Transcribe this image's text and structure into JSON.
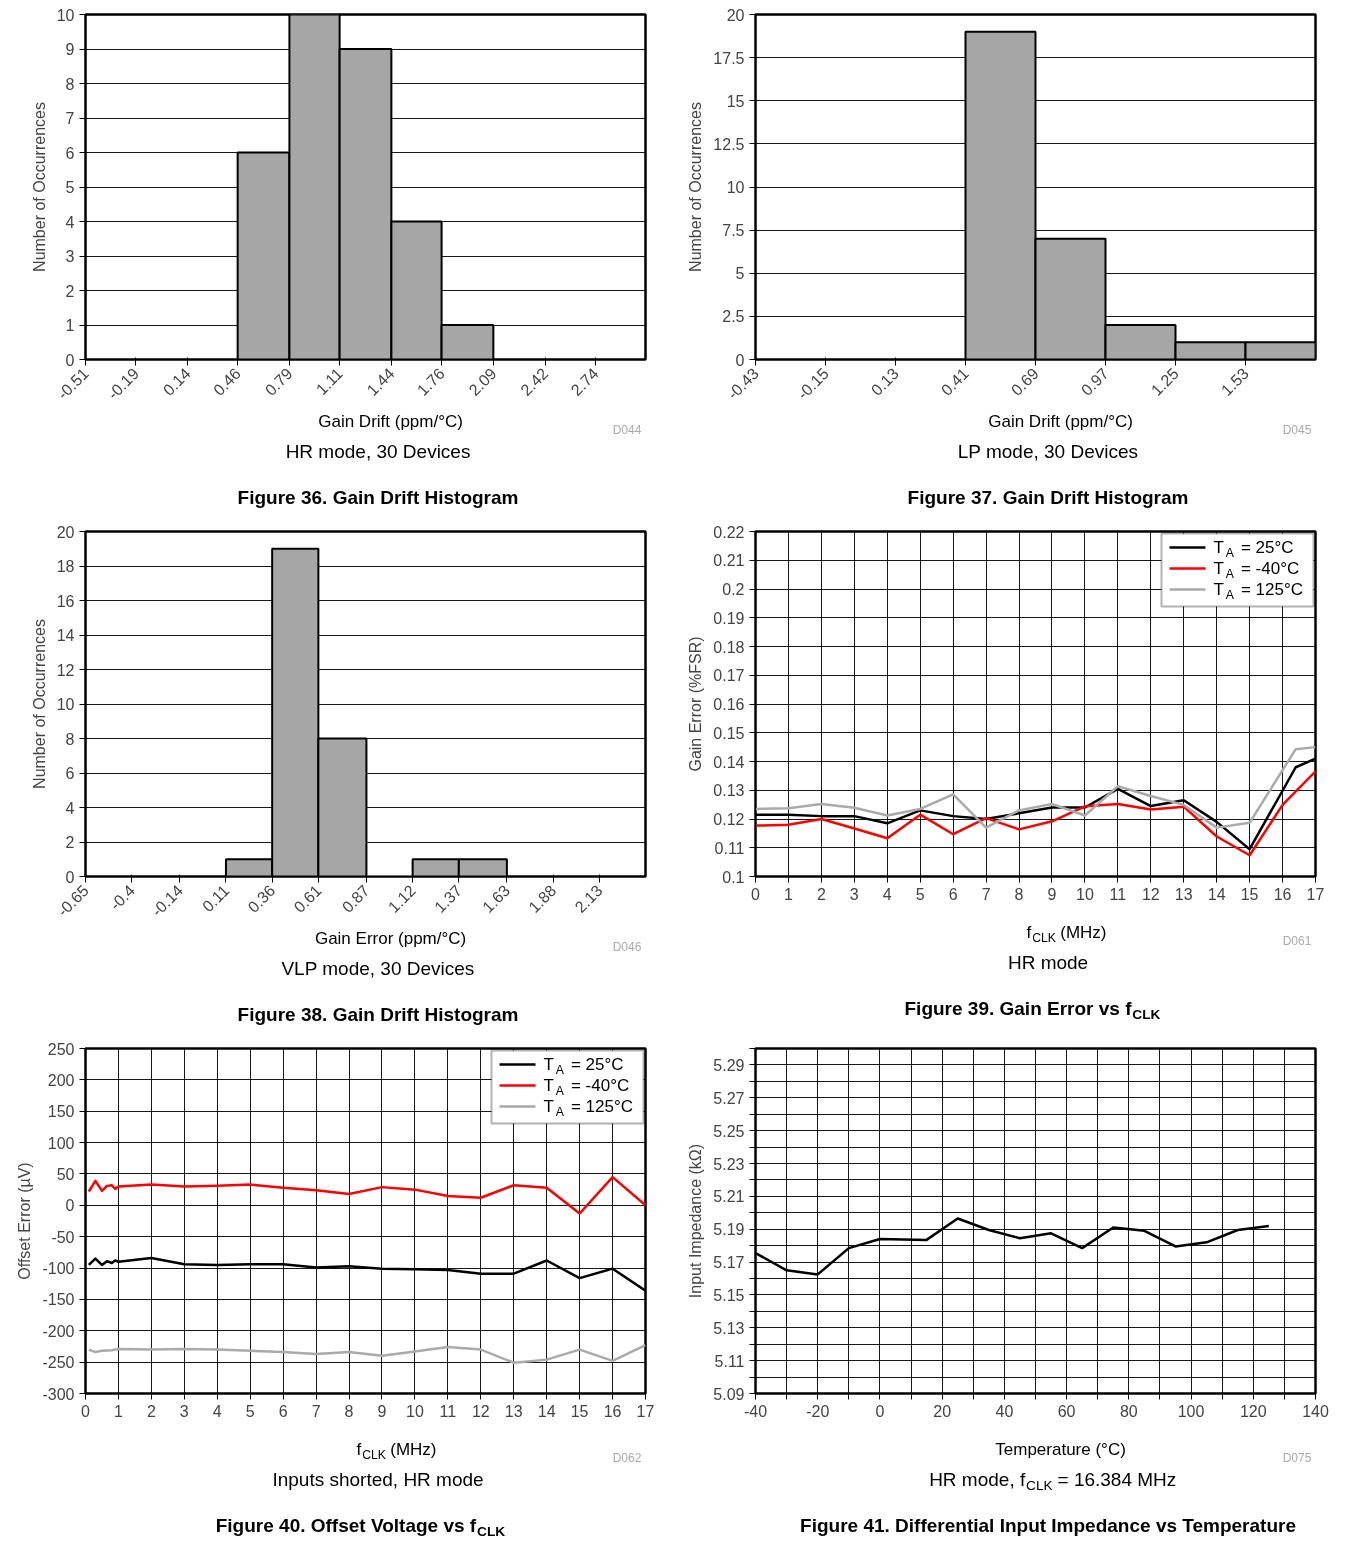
{
  "chart_data": [
    {
      "type": "histogram",
      "title": "Figure 36. Gain Drift Histogram",
      "subtitle": "HR mode, 30 Devices",
      "xlabel": "Gain Drift (ppm/°C)",
      "ylabel": "Number of Occurrences",
      "annotations": [
        "D044"
      ],
      "color": "#a6a6a6",
      "grid": "y",
      "bins": [
        0.46,
        0.79,
        1.11,
        1.44,
        1.76,
        2.09
      ],
      "values": [
        6,
        10,
        9,
        4,
        1
      ],
      "xlim": [
        -0.51,
        3.06
      ],
      "xticks": [
        -0.51,
        -0.19,
        0.14,
        0.46,
        0.79,
        1.11,
        1.44,
        1.76,
        2.09,
        2.42,
        2.74
      ],
      "ylim": [
        0,
        10
      ],
      "yticks": [
        0,
        1,
        2,
        3,
        4,
        5,
        6,
        7,
        8,
        9,
        10
      ]
    },
    {
      "type": "histogram",
      "title": "Figure 37. Gain Drift Histogram",
      "subtitle": "LP mode, 30 Devices",
      "xlabel": "Gain Drift (ppm/°C)",
      "ylabel": "Number of Occurrences",
      "annotations": [
        "D045"
      ],
      "color": "#a6a6a6",
      "grid": "y",
      "bins": [
        0.41,
        0.69,
        0.97,
        1.25,
        1.53,
        1.81
      ],
      "values": [
        19,
        7,
        2,
        1,
        1
      ],
      "xlim": [
        -0.43,
        1.81
      ],
      "xticks": [
        -0.43,
        -0.15,
        0.13,
        0.41,
        0.69,
        0.97,
        1.25,
        1.53
      ],
      "ylim": [
        0,
        20
      ],
      "yticks": [
        0,
        2.5,
        5,
        7.5,
        10,
        12.5,
        15,
        17.5,
        20
      ]
    },
    {
      "type": "histogram",
      "title": "Figure 38. Gain Drift Histogram",
      "subtitle": "VLP mode, 30 Devices",
      "xlabel": "Gain Error (ppm/°C)",
      "ylabel": "Number of Occurrences",
      "annotations": [
        "D046"
      ],
      "color": "#a6a6a6",
      "grid": "y",
      "bins": [
        0.11,
        0.36,
        0.61,
        0.87,
        1.12,
        1.37,
        1.63
      ],
      "values": [
        1,
        19,
        8,
        0,
        1,
        1
      ],
      "xlim": [
        -0.65,
        2.38
      ],
      "xticks": [
        -0.65,
        -0.4,
        -0.14,
        0.11,
        0.36,
        0.61,
        0.87,
        1.12,
        1.37,
        1.63,
        1.88,
        2.13
      ],
      "ylim": [
        0,
        20
      ],
      "yticks": [
        0,
        2,
        4,
        6,
        8,
        10,
        12,
        14,
        16,
        18,
        20
      ]
    },
    {
      "type": "line",
      "title": "Figure 39. Gain Error vs f$_{CLK}$",
      "subtitle": "HR mode",
      "xlabel": "f$_{CLK}$ (MHz)",
      "ylabel": "Gain Error (%FSR)",
      "annotations": [
        "D061"
      ],
      "grid": true,
      "legend": "top right",
      "series": [
        {
          "name": "T$_{A}$ = 25°C",
          "color": "#000000",
          "x": [
            0,
            1,
            2,
            3,
            4,
            5,
            6,
            7,
            8,
            9,
            10,
            11,
            12,
            13,
            14,
            15,
            16.4,
            17
          ],
          "values": [
            0.1215,
            0.1215,
            0.121,
            0.121,
            0.1185,
            0.123,
            0.121,
            0.12,
            0.122,
            0.124,
            0.124,
            0.1305,
            0.1245,
            0.1265,
            0.119,
            0.1095,
            0.138,
            0.141
          ]
        },
        {
          "name": "T$_{A}$ = -40°C",
          "color": "#ff0000",
          "x": [
            0,
            1,
            2,
            3,
            4,
            5,
            6,
            7,
            8,
            9,
            10,
            11,
            12,
            13,
            14,
            15,
            16,
            17
          ],
          "values": [
            0.1177,
            0.118,
            0.12,
            0.1167,
            0.1133,
            0.1215,
            0.1147,
            0.1203,
            0.1164,
            0.1192,
            0.1244,
            0.1252,
            0.1233,
            0.1243,
            0.1139,
            0.1074,
            0.1249,
            0.1366
          ]
        },
        {
          "name": "T$_{A}$ = 125°C",
          "color": "#aaaaaa",
          "x": [
            0,
            1,
            2,
            3,
            4,
            5,
            6,
            7,
            8,
            9,
            10,
            11,
            12,
            13,
            14,
            15,
            16.4,
            17
          ],
          "values": [
            0.1235,
            0.1237,
            0.1252,
            0.1239,
            0.1212,
            0.1235,
            0.1286,
            0.117,
            0.123,
            0.1252,
            0.1212,
            0.1314,
            0.128,
            0.1249,
            0.117,
            0.1187,
            0.1443,
            0.145
          ]
        }
      ],
      "xlim": [
        0,
        17
      ],
      "xticks": [
        0,
        1,
        2,
        3,
        4,
        5,
        6,
        7,
        8,
        9,
        10,
        11,
        12,
        13,
        14,
        15,
        16,
        17
      ],
      "ylim": [
        0.1,
        0.22
      ],
      "yticks": [
        0.1,
        0.11,
        0.12,
        0.13,
        0.14,
        0.15,
        0.16,
        0.17,
        0.18,
        0.19,
        0.2,
        0.21,
        0.22
      ]
    },
    {
      "type": "line",
      "title": "Figure 40. Offset Voltage vs f$_{CLK}$",
      "subtitle": "Inputs shorted, HR mode",
      "xlabel": "f$_{CLK}$ (MHz)",
      "ylabel": "Offset Error (µV)",
      "annotations": [
        "D062"
      ],
      "grid": true,
      "legend": "top right",
      "series": [
        {
          "name": "T$_{A}$ = 25°C",
          "color": "#000000",
          "x": [
            0.1,
            0.3,
            0.5,
            0.65,
            0.8,
            0.9,
            1,
            2,
            3,
            4,
            5,
            6,
            7,
            8,
            9,
            10,
            11,
            12,
            13,
            14,
            15,
            16,
            17
          ],
          "values": [
            -95,
            -85,
            -95,
            -89,
            -92,
            -88,
            -90,
            -84,
            -94,
            -95,
            -94,
            -94,
            -99,
            -97,
            -101,
            -102,
            -103,
            -109,
            -109,
            -88,
            -116,
            -101,
            -136
          ]
        },
        {
          "name": "T$_{A}$ = -40°C",
          "color": "#ff0000",
          "x": [
            0.1,
            0.3,
            0.5,
            0.65,
            0.8,
            0.9,
            1,
            2,
            3,
            4,
            5,
            6,
            7,
            8,
            9,
            10,
            11,
            12,
            13,
            14,
            15,
            16,
            17
          ],
          "values": [
            22,
            39,
            23,
            31,
            32,
            26,
            30,
            33,
            30,
            31,
            33,
            28,
            24,
            18,
            29,
            25,
            15,
            12,
            32,
            28,
            -13,
            45,
            0
          ]
        },
        {
          "name": "T$_{A}$ = 125°C",
          "color": "#aaaaaa",
          "x": [
            0.1,
            0.3,
            0.5,
            0.8,
            1,
            2,
            3,
            4,
            5,
            6,
            7,
            8,
            9,
            10,
            11,
            12,
            13,
            14,
            15,
            16,
            17
          ],
          "values": [
            -230,
            -234,
            -232,
            -231,
            -229,
            -230,
            -229,
            -230,
            -232,
            -234,
            -237,
            -234,
            -240,
            -233,
            -226,
            -230,
            -251,
            -246,
            -230,
            -248,
            -223
          ]
        }
      ],
      "xlim": [
        0,
        17
      ],
      "xticks": [
        0,
        1,
        2,
        3,
        4,
        5,
        6,
        7,
        8,
        9,
        10,
        11,
        12,
        13,
        14,
        15,
        16,
        17
      ],
      "ylim": [
        -300,
        250
      ],
      "yticks": [
        -300,
        -250,
        -200,
        -150,
        -100,
        -50,
        0,
        50,
        100,
        150,
        200,
        250
      ]
    },
    {
      "type": "line",
      "title": "Figure 41. Differential Input Impedance vs Temperature",
      "subtitle": "HR mode, f$_{CLK}$ = 16.384 MHz",
      "xlabel": "Temperature (°C)",
      "ylabel": "Input Impedance (kΩ)",
      "annotations": [
        "D075"
      ],
      "grid": true,
      "series": [
        {
          "color": "#000000",
          "x": [
            -40,
            -30,
            -20,
            -10,
            0,
            15,
            25,
            35,
            45,
            55,
            65,
            75,
            85,
            95,
            105,
            115,
            125
          ],
          "values": [
            5.1755,
            5.165,
            5.1625,
            5.1785,
            5.184,
            5.1835,
            5.1965,
            5.1895,
            5.1845,
            5.1875,
            5.1785,
            5.191,
            5.189,
            5.1795,
            5.182,
            5.1895,
            5.192
          ]
        }
      ],
      "xlim": [
        -40,
        140
      ],
      "xticks": [
        -40,
        {
          "value": -30,
          "label": null
        },
        -20,
        {
          "value": -10,
          "label": null
        },
        0,
        {
          "value": 10,
          "label": null
        },
        20,
        {
          "value": 30,
          "label": null
        },
        40,
        {
          "value": 50,
          "label": null
        },
        60,
        {
          "value": 70,
          "label": null
        },
        80,
        {
          "value": 90,
          "label": null
        },
        100,
        {
          "value": 110,
          "label": null
        },
        120,
        {
          "value": 130,
          "label": null
        },
        140
      ],
      "ylim": [
        5.09,
        5.3
      ],
      "yticks": [
        5.09,
        {
          "value": 5.1,
          "label": null
        },
        5.11,
        {
          "value": 5.12,
          "label": null
        },
        5.13,
        {
          "value": 5.14,
          "label": null
        },
        5.15,
        {
          "value": 5.16,
          "label": null
        },
        5.17,
        {
          "value": 5.18,
          "label": null
        },
        5.19,
        {
          "value": 5.2,
          "label": null
        },
        5.21,
        {
          "value": 5.22,
          "label": null
        },
        5.23,
        {
          "value": 5.24,
          "label": null
        },
        5.25,
        {
          "value": 5.26,
          "label": null
        },
        5.27,
        {
          "value": 5.28,
          "label": null
        },
        5.29,
        {
          "value": 5.3,
          "label": null
        }
      ]
    }
  ]
}
